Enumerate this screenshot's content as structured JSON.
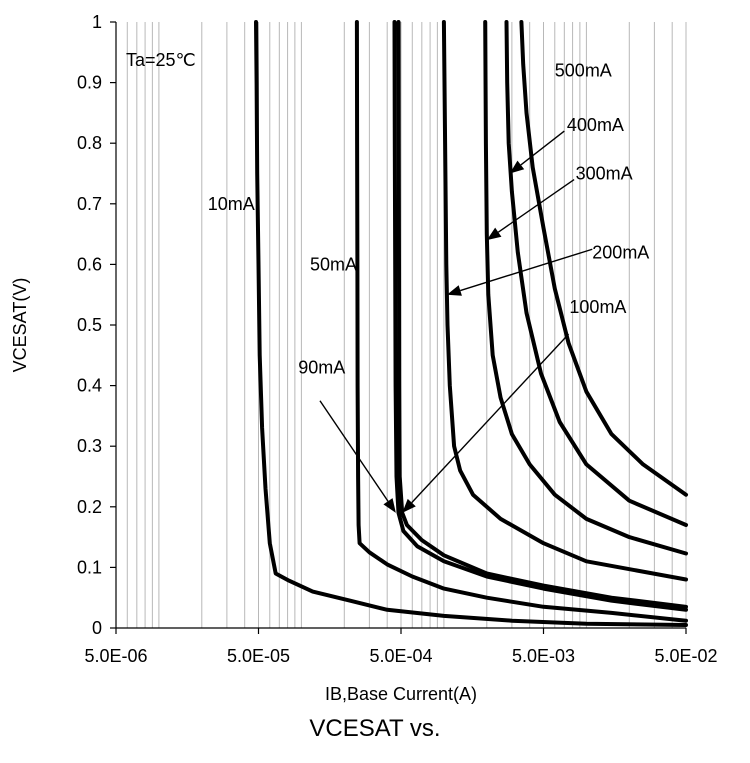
{
  "chart_data": {
    "type": "line",
    "x_scale": "log",
    "xlim": [
      5e-06,
      0.05
    ],
    "ylim": [
      0,
      1
    ],
    "xlabel": "IB,Base Current(A)",
    "ylabel": "VCESAT(V)",
    "caption": "VCESAT vs.",
    "condition": "Ta=25℃",
    "x_ticks": [
      "5.0E-06",
      "5.0E-05",
      "5.0E-04",
      "5.0E-03",
      "5.0E-02"
    ],
    "x_tick_values": [
      5e-06,
      5e-05,
      0.0005,
      0.005,
      0.05
    ],
    "y_ticks": [
      "0",
      "0.1",
      "0.2",
      "0.3",
      "0.4",
      "0.5",
      "0.6",
      "0.7",
      "0.8",
      "0.9",
      "1"
    ],
    "y_tick_values": [
      0,
      0.1,
      0.2,
      0.3,
      0.4,
      0.5,
      0.6,
      0.7,
      0.8,
      0.9,
      1
    ],
    "grid": {
      "vertical_minor": true,
      "horizontal": false
    },
    "series": [
      {
        "name": "10mA",
        "points": [
          [
            4.8e-05,
            1.0
          ],
          [
            4.85e-05,
            0.9
          ],
          [
            4.9e-05,
            0.75
          ],
          [
            5e-05,
            0.6
          ],
          [
            5.1e-05,
            0.45
          ],
          [
            5.3e-05,
            0.33
          ],
          [
            5.6e-05,
            0.23
          ],
          [
            6e-05,
            0.14
          ],
          [
            6.6e-05,
            0.09
          ],
          [
            8.2e-05,
            0.078
          ],
          [
            0.00012,
            0.06
          ],
          [
            0.00022,
            0.045
          ],
          [
            0.0004,
            0.03
          ],
          [
            0.001,
            0.02
          ],
          [
            0.003,
            0.012
          ],
          [
            0.01,
            0.007
          ],
          [
            0.05,
            0.005
          ]
        ]
      },
      {
        "name": "50mA",
        "points": [
          [
            0.000245,
            1.0
          ],
          [
            0.000246,
            0.8
          ],
          [
            0.000247,
            0.6
          ],
          [
            0.000248,
            0.4
          ],
          [
            0.00025,
            0.25
          ],
          [
            0.000252,
            0.17
          ],
          [
            0.000256,
            0.14
          ],
          [
            0.0003,
            0.125
          ],
          [
            0.0004,
            0.105
          ],
          [
            0.0006,
            0.085
          ],
          [
            0.001,
            0.065
          ],
          [
            0.002,
            0.05
          ],
          [
            0.005,
            0.035
          ],
          [
            0.015,
            0.025
          ],
          [
            0.05,
            0.012
          ]
        ]
      },
      {
        "name": "90mA",
        "points": [
          [
            0.00045,
            1.0
          ],
          [
            0.000452,
            0.8
          ],
          [
            0.000455,
            0.6
          ],
          [
            0.000458,
            0.4
          ],
          [
            0.000465,
            0.25
          ],
          [
            0.00048,
            0.19
          ],
          [
            0.00052,
            0.16
          ],
          [
            0.00065,
            0.135
          ],
          [
            0.001,
            0.11
          ],
          [
            0.002,
            0.085
          ],
          [
            0.005,
            0.065
          ],
          [
            0.015,
            0.045
          ],
          [
            0.05,
            0.03
          ]
        ]
      },
      {
        "name": "100mA",
        "points": [
          [
            0.00048,
            1.0
          ],
          [
            0.000482,
            0.8
          ],
          [
            0.000484,
            0.6
          ],
          [
            0.000486,
            0.4
          ],
          [
            0.00049,
            0.25
          ],
          [
            0.00051,
            0.19
          ],
          [
            0.00055,
            0.17
          ],
          [
            0.0007,
            0.145
          ],
          [
            0.001,
            0.12
          ],
          [
            0.002,
            0.09
          ],
          [
            0.005,
            0.07
          ],
          [
            0.015,
            0.05
          ],
          [
            0.05,
            0.035
          ]
        ]
      },
      {
        "name": "200mA",
        "points": [
          [
            0.001,
            1.0
          ],
          [
            0.00102,
            0.8
          ],
          [
            0.00104,
            0.6
          ],
          [
            0.00106,
            0.5
          ],
          [
            0.0011,
            0.4
          ],
          [
            0.00118,
            0.3
          ],
          [
            0.0013,
            0.26
          ],
          [
            0.0016,
            0.22
          ],
          [
            0.0025,
            0.18
          ],
          [
            0.005,
            0.14
          ],
          [
            0.01,
            0.11
          ],
          [
            0.05,
            0.08
          ]
        ]
      },
      {
        "name": "300mA",
        "points": [
          [
            0.00195,
            1.0
          ],
          [
            0.00197,
            0.8
          ],
          [
            0.002,
            0.65
          ],
          [
            0.00205,
            0.55
          ],
          [
            0.0022,
            0.45
          ],
          [
            0.0025,
            0.38
          ],
          [
            0.003,
            0.32
          ],
          [
            0.004,
            0.27
          ],
          [
            0.006,
            0.22
          ],
          [
            0.01,
            0.18
          ],
          [
            0.02,
            0.15
          ],
          [
            0.05,
            0.123
          ]
        ]
      },
      {
        "name": "400mA",
        "points": [
          [
            0.00275,
            1.0
          ],
          [
            0.00278,
            0.9
          ],
          [
            0.00285,
            0.8
          ],
          [
            0.003,
            0.72
          ],
          [
            0.0033,
            0.62
          ],
          [
            0.0038,
            0.52
          ],
          [
            0.0048,
            0.42
          ],
          [
            0.0065,
            0.34
          ],
          [
            0.01,
            0.27
          ],
          [
            0.02,
            0.21
          ],
          [
            0.05,
            0.17
          ]
        ]
      },
      {
        "name": "500mA",
        "points": [
          [
            0.0035,
            1.0
          ],
          [
            0.0036,
            0.93
          ],
          [
            0.0038,
            0.85
          ],
          [
            0.0042,
            0.76
          ],
          [
            0.005,
            0.66
          ],
          [
            0.006,
            0.56
          ],
          [
            0.0075,
            0.47
          ],
          [
            0.01,
            0.39
          ],
          [
            0.015,
            0.32
          ],
          [
            0.025,
            0.27
          ],
          [
            0.05,
            0.22
          ]
        ]
      }
    ],
    "labels": [
      {
        "text": "10mA",
        "x": 2.2e-05,
        "y": 0.7
      },
      {
        "text": "50mA",
        "x": 0.000115,
        "y": 0.6
      },
      {
        "text": "90mA",
        "x": 9.5e-05,
        "y": 0.43
      },
      {
        "text": "100mA",
        "x": 0.0076,
        "y": 0.53
      },
      {
        "text": "200mA",
        "x": 0.011,
        "y": 0.62
      },
      {
        "text": "300mA",
        "x": 0.0084,
        "y": 0.75
      },
      {
        "text": "400mA",
        "x": 0.0073,
        "y": 0.83
      },
      {
        "text": "500mA",
        "x": 0.006,
        "y": 0.92
      }
    ],
    "arrows": [
      {
        "from": [
          0.000135,
          0.375
        ],
        "to": [
          0.00046,
          0.19
        ]
      },
      {
        "from": [
          0.0075,
          0.485
        ],
        "to": [
          0.00051,
          0.19
        ]
      },
      {
        "from": [
          0.011,
          0.625
        ],
        "to": [
          0.00105,
          0.55
        ]
      },
      {
        "from": [
          0.0082,
          0.74
        ],
        "to": [
          0.002,
          0.64
        ]
      },
      {
        "from": [
          0.007,
          0.82
        ],
        "to": [
          0.0029,
          0.75
        ]
      }
    ]
  }
}
